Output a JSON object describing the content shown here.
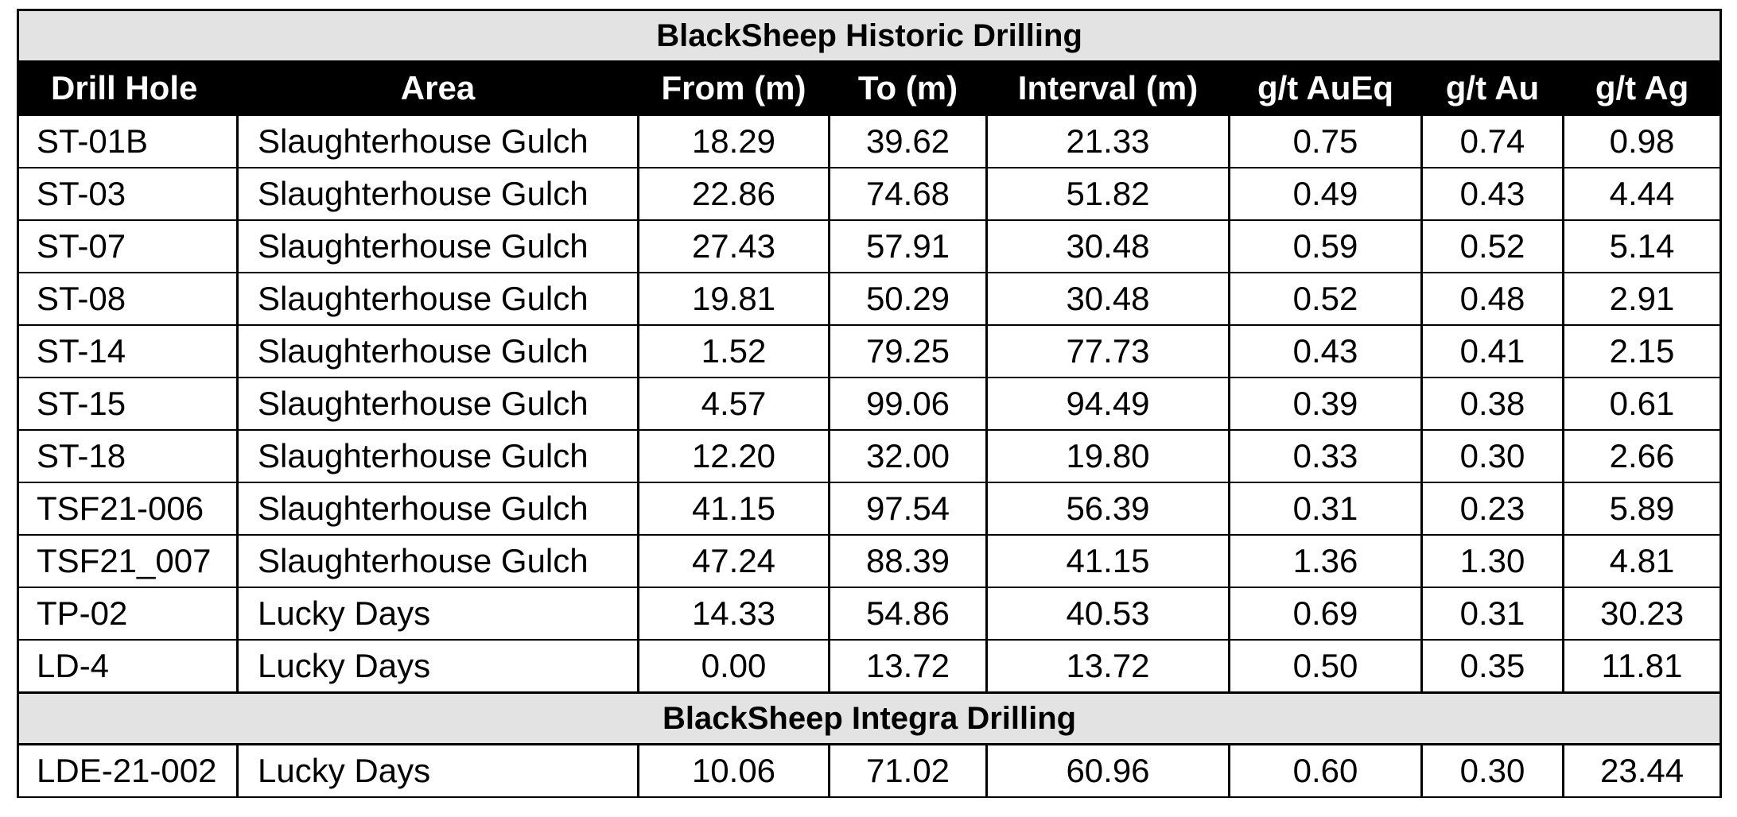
{
  "sections": {
    "historic_title": "BlackSheep Historic Drilling",
    "integra_title": "BlackSheep Integra Drilling"
  },
  "columns": [
    "Drill Hole",
    "Area",
    "From (m)",
    "To (m)",
    "Interval (m)",
    "g/t AuEq",
    "g/t Au",
    "g/t Ag"
  ],
  "historic_rows": [
    [
      "ST-01B",
      "Slaughterhouse Gulch",
      "18.29",
      "39.62",
      "21.33",
      "0.75",
      "0.74",
      "0.98"
    ],
    [
      "ST-03",
      "Slaughterhouse Gulch",
      "22.86",
      "74.68",
      "51.82",
      "0.49",
      "0.43",
      "4.44"
    ],
    [
      "ST-07",
      "Slaughterhouse Gulch",
      "27.43",
      "57.91",
      "30.48",
      "0.59",
      "0.52",
      "5.14"
    ],
    [
      "ST-08",
      "Slaughterhouse Gulch",
      "19.81",
      "50.29",
      "30.48",
      "0.52",
      "0.48",
      "2.91"
    ],
    [
      "ST-14",
      "Slaughterhouse Gulch",
      "1.52",
      "79.25",
      "77.73",
      "0.43",
      "0.41",
      "2.15"
    ],
    [
      "ST-15",
      "Slaughterhouse Gulch",
      "4.57",
      "99.06",
      "94.49",
      "0.39",
      "0.38",
      "0.61"
    ],
    [
      "ST-18",
      "Slaughterhouse Gulch",
      "12.20",
      "32.00",
      "19.80",
      "0.33",
      "0.30",
      "2.66"
    ],
    [
      "TSF21-006",
      "Slaughterhouse Gulch",
      "41.15",
      "97.54",
      "56.39",
      "0.31",
      "0.23",
      "5.89"
    ],
    [
      "TSF21_007",
      "Slaughterhouse Gulch",
      "47.24",
      "88.39",
      "41.15",
      "1.36",
      "1.30",
      "4.81"
    ],
    [
      "TP-02",
      "Lucky Days",
      "14.33",
      "54.86",
      "40.53",
      "0.69",
      "0.31",
      "30.23"
    ],
    [
      "LD-4",
      "Lucky Days",
      "0.00",
      "13.72",
      "13.72",
      "0.50",
      "0.35",
      "11.81"
    ]
  ],
  "integra_rows": [
    [
      "LDE-21-002",
      "Lucky Days",
      "10.06",
      "71.02",
      "60.96",
      "0.60",
      "0.30",
      "23.44"
    ]
  ]
}
